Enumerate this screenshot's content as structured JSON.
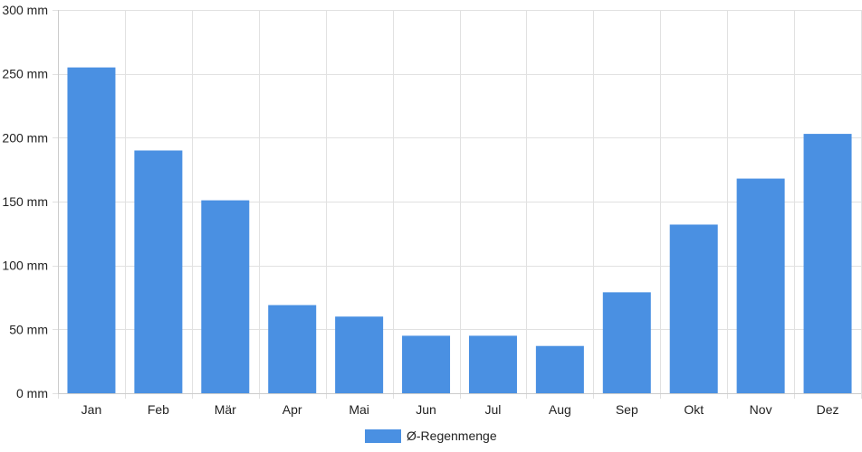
{
  "chart_data": {
    "type": "bar",
    "categories": [
      "Jan",
      "Feb",
      "Mär",
      "Apr",
      "Mai",
      "Jun",
      "Jul",
      "Aug",
      "Sep",
      "Okt",
      "Nov",
      "Dez"
    ],
    "series": [
      {
        "name": "Ø-Regenmenge",
        "values": [
          255,
          190,
          151,
          69,
          60,
          45,
          45,
          37,
          79,
          132,
          168,
          203
        ]
      }
    ],
    "ylim": [
      0,
      300
    ],
    "y_ticks": [
      0,
      50,
      100,
      150,
      200,
      250,
      300
    ],
    "y_tick_labels": [
      "0 mm",
      "50 mm",
      "100 mm",
      "150 mm",
      "200 mm",
      "250 mm",
      "300 mm"
    ],
    "grid": true,
    "legend": "bottom-center",
    "colors": {
      "bar": "#4a90e2",
      "grid": "#e1e1e1",
      "axis": "#cccccc"
    }
  }
}
